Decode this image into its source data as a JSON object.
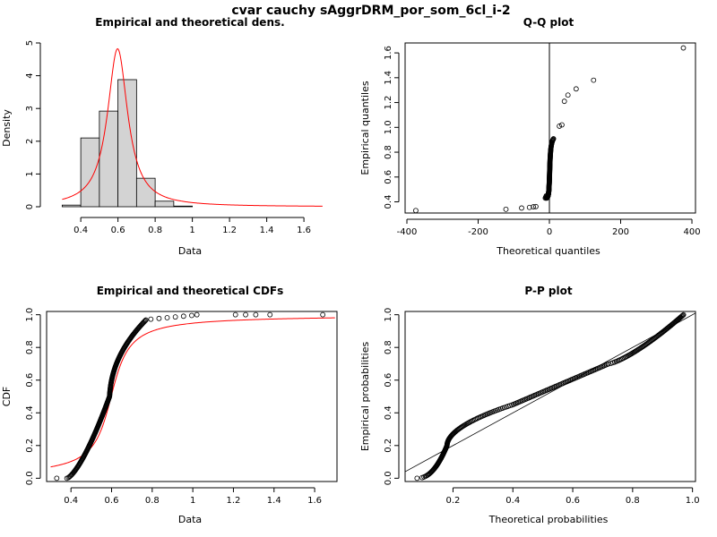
{
  "figure": {
    "title": "cvar cauchy sAggrDRM_por_som_6cl_i-2"
  },
  "colors": {
    "fit": "#ff0000",
    "bar_fill": "#d3d3d3",
    "ink": "#000000"
  },
  "chart_data": [
    {
      "id": "density",
      "type": "bar",
      "title": "Empirical and theoretical dens.",
      "xlabel": "Data",
      "ylabel": "Density",
      "xlim": [
        0.25,
        1.72
      ],
      "ylim": [
        0,
        5.0
      ],
      "xticks": [
        0.4,
        0.6,
        0.8,
        1.0,
        1.2,
        1.4,
        1.6
      ],
      "yticks": [
        0,
        1,
        2,
        3,
        4,
        5
      ],
      "histogram": {
        "bin_edges": [
          0.3,
          0.4,
          0.5,
          0.6,
          0.7,
          0.8,
          0.9,
          1.0,
          1.1,
          1.2,
          1.3,
          1.4,
          1.5,
          1.6,
          1.7
        ],
        "values": [
          0.05,
          2.1,
          2.92,
          3.88,
          0.87,
          0.17,
          0.02,
          0.0,
          0.0,
          0.0,
          0.0,
          0.0,
          0.0,
          0.0
        ]
      },
      "theoretical": {
        "distribution": "cauchy",
        "location": 0.598,
        "scale": 0.066
      }
    },
    {
      "id": "qq",
      "type": "scatter",
      "title": "Q-Q plot",
      "xlabel": "Theoretical quantiles",
      "ylabel": "Empirical quantiles",
      "xlim": [
        -405,
        410
      ],
      "ylim": [
        0.31,
        1.68
      ],
      "xticks": [
        -400,
        -200,
        0,
        200,
        400
      ],
      "yticks": [
        0.4,
        0.6,
        0.8,
        1.0,
        1.2,
        1.4,
        1.6
      ],
      "outliers": [
        [
          -375,
          0.33
        ],
        [
          -122,
          0.34
        ],
        [
          -78,
          0.35
        ],
        [
          -56,
          0.355
        ],
        [
          -45,
          0.36
        ],
        [
          -38,
          0.362
        ],
        [
          28,
          1.01
        ],
        [
          35,
          1.02
        ],
        [
          42,
          1.21
        ],
        [
          52,
          1.26
        ],
        [
          75,
          1.31
        ],
        [
          124,
          1.38
        ],
        [
          376,
          1.64
        ]
      ],
      "vertical_line_x": 0
    },
    {
      "id": "cdf",
      "type": "line",
      "title": "Empirical and theoretical CDFs",
      "xlabel": "Data",
      "ylabel": "CDF",
      "xlim": [
        0.28,
        1.71
      ],
      "ylim": [
        -0.02,
        1.02
      ],
      "xticks": [
        0.4,
        0.6,
        0.8,
        1.0,
        1.2,
        1.4,
        1.6
      ],
      "yticks": [
        0.0,
        0.2,
        0.4,
        0.6,
        0.8,
        1.0
      ],
      "isolated_points": [
        [
          0.33,
          0.0
        ],
        [
          1.21,
          1.0
        ],
        [
          1.26,
          1.0
        ],
        [
          1.31,
          1.0
        ],
        [
          1.38,
          1.0
        ],
        [
          1.64,
          1.0
        ]
      ],
      "theoretical": {
        "distribution": "cauchy",
        "location": 0.598,
        "scale": 0.066
      }
    },
    {
      "id": "pp",
      "type": "scatter",
      "title": "P-P plot",
      "xlabel": "Theoretical probabilities",
      "ylabel": "Empirical probabilities",
      "xlim": [
        0.04,
        1.01
      ],
      "ylim": [
        -0.02,
        1.02
      ],
      "xticks": [
        0.2,
        0.4,
        0.6,
        0.8,
        1.0
      ],
      "yticks": [
        0.0,
        0.2,
        0.4,
        0.6,
        0.8,
        1.0
      ],
      "reference_line": "identity"
    }
  ]
}
